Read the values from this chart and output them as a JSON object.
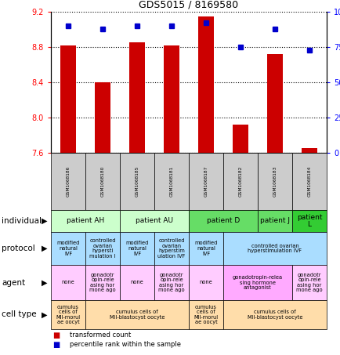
{
  "title": "GDS5015 / 8169580",
  "samples": [
    "GSM1068186",
    "GSM1068180",
    "GSM1068185",
    "GSM1068181",
    "GSM1068187",
    "GSM1068182",
    "GSM1068183",
    "GSM1068184"
  ],
  "transformed_counts": [
    8.82,
    8.4,
    8.85,
    8.82,
    9.15,
    7.92,
    8.72,
    7.65
  ],
  "percentile_ranks": [
    90,
    88,
    90,
    90,
    92,
    75,
    88,
    73
  ],
  "ylim_left": [
    7.6,
    9.2
  ],
  "yticks_left": [
    7.6,
    8.0,
    8.4,
    8.8,
    9.2
  ],
  "yticks_right": [
    0,
    25,
    50,
    75,
    100
  ],
  "bar_color": "#cc0000",
  "dot_color": "#0000cc",
  "gsm_cell_color": "#cccccc",
  "individual_row": {
    "spans": [
      {
        "cols": [
          0,
          1
        ],
        "label": "patient AH",
        "color": "#ccffcc"
      },
      {
        "cols": [
          2,
          3
        ],
        "label": "patient AU",
        "color": "#ccffcc"
      },
      {
        "cols": [
          4,
          5
        ],
        "label": "patient D",
        "color": "#66dd66"
      },
      {
        "cols": [
          6,
          6
        ],
        "label": "patient J",
        "color": "#66dd66"
      },
      {
        "cols": [
          7,
          7
        ],
        "label": "patient\nL",
        "color": "#33cc33"
      }
    ]
  },
  "protocol_row": {
    "spans": [
      {
        "cols": [
          0,
          0
        ],
        "label": "modified\nnatural\nIVF",
        "color": "#aaddff"
      },
      {
        "cols": [
          1,
          1
        ],
        "label": "controlled\novarian\nhypersti\nmulation I",
        "color": "#aaddff"
      },
      {
        "cols": [
          2,
          2
        ],
        "label": "modified\nnatural\nIVF",
        "color": "#aaddff"
      },
      {
        "cols": [
          3,
          3
        ],
        "label": "controlled\novarian\nhyperstim\nulation IVF",
        "color": "#aaddff"
      },
      {
        "cols": [
          4,
          4
        ],
        "label": "modified\nnatural\nIVF",
        "color": "#aaddff"
      },
      {
        "cols": [
          5,
          7
        ],
        "label": "controlled ovarian\nhyperstimulation IVF",
        "color": "#aaddff"
      }
    ]
  },
  "agent_row": {
    "spans": [
      {
        "cols": [
          0,
          0
        ],
        "label": "none",
        "color": "#ffccff"
      },
      {
        "cols": [
          1,
          1
        ],
        "label": "gonadotr\nopin-rele\nasing hor\nmone ago",
        "color": "#ffccff"
      },
      {
        "cols": [
          2,
          2
        ],
        "label": "none",
        "color": "#ffccff"
      },
      {
        "cols": [
          3,
          3
        ],
        "label": "gonadotr\nopin-rele\nasing hor\nmone ago",
        "color": "#ffccff"
      },
      {
        "cols": [
          4,
          4
        ],
        "label": "none",
        "color": "#ffccff"
      },
      {
        "cols": [
          5,
          6
        ],
        "label": "gonadotropin-relea\nsing hormone\nantagonist",
        "color": "#ffaaff"
      },
      {
        "cols": [
          7,
          7
        ],
        "label": "gonadotr\nopin-rele\nasing hor\nmone ago",
        "color": "#ffccff"
      }
    ]
  },
  "celltype_row": {
    "spans": [
      {
        "cols": [
          0,
          0
        ],
        "label": "cumulus\ncells of\nMII-morul\nae oocyt",
        "color": "#ffddaa"
      },
      {
        "cols": [
          1,
          3
        ],
        "label": "cumulus cells of\nMII-blastocyst oocyte",
        "color": "#ffddaa"
      },
      {
        "cols": [
          4,
          4
        ],
        "label": "cumulus\ncells of\nMII-morul\nae oocyt",
        "color": "#ffddaa"
      },
      {
        "cols": [
          5,
          7
        ],
        "label": "cumulus cells of\nMII-blastocyst oocyte",
        "color": "#ffddaa"
      }
    ]
  },
  "row_labels": [
    "individual",
    "protocol",
    "agent",
    "cell type"
  ],
  "legend_items": [
    {
      "label": "transformed count",
      "color": "#cc0000"
    },
    {
      "label": "percentile rank within the sample",
      "color": "#0000cc"
    }
  ],
  "fig_width": 4.35,
  "fig_height": 4.53,
  "dpi": 100
}
